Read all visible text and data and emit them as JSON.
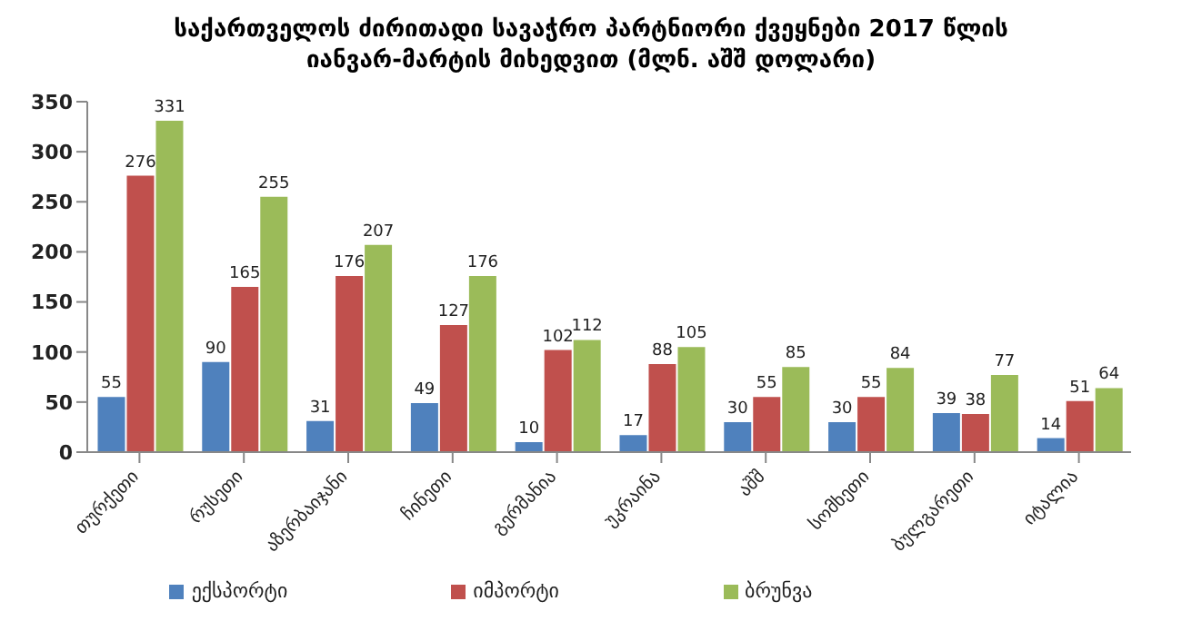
{
  "chart_data": {
    "type": "bar",
    "title": "საქართველოს ძირითადი სავაჭრო  პარტნიორი ქვეყნები  2017 წლის იანვარ-მარტის მიხედვით (მლნ. აშშ დოლარი)",
    "categories": [
      "თურქეთი",
      "რუსეთი",
      "აზერბაიჯანი",
      "ჩინეთი",
      "გერმანია",
      "უკრაინა",
      "აშშ",
      "სომხეთი",
      "ბულგარეთი",
      "იტალია"
    ],
    "series": [
      {
        "name": "ექსპორტი",
        "color": "#4f81bd",
        "values": [
          55,
          90,
          31,
          49,
          10,
          17,
          30,
          30,
          39,
          14
        ]
      },
      {
        "name": "იმპორტი",
        "color": "#c0504d",
        "values": [
          276,
          165,
          176,
          127,
          102,
          88,
          55,
          55,
          38,
          51
        ]
      },
      {
        "name": "ბრუნვა",
        "color": "#9bbb59",
        "values": [
          331,
          255,
          207,
          176,
          112,
          105,
          85,
          84,
          77,
          64
        ]
      }
    ],
    "ylim": [
      0,
      350
    ],
    "yticks": [
      0,
      50,
      100,
      150,
      200,
      250,
      300,
      350
    ],
    "grid": false,
    "legend": "bottom",
    "data_labels": true
  }
}
